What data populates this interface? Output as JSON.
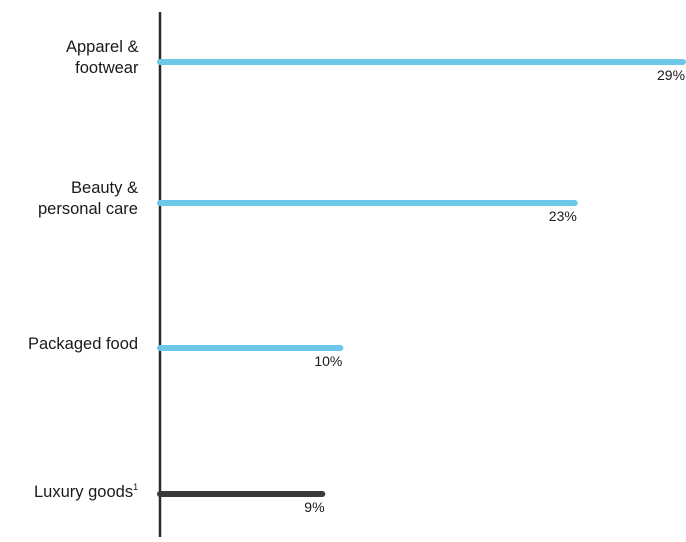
{
  "chart_data": {
    "type": "bar",
    "orientation": "horizontal",
    "categories": [
      {
        "line1": "Apparel &",
        "line2": "footwear",
        "sup": ""
      },
      {
        "line1": "Beauty &",
        "line2": "personal care",
        "sup": ""
      },
      {
        "line1": "Packaged food",
        "line2": "",
        "sup": ""
      },
      {
        "line1": "Luxury goods",
        "line2": "",
        "sup": "1"
      }
    ],
    "values": [
      29,
      23,
      10,
      9
    ],
    "value_labels": [
      "29%",
      "23%",
      "10%",
      "9%"
    ],
    "bar_colors": [
      "#6ec6e8",
      "#6ec6e8",
      "#6ec6e8",
      "#3a3a3a"
    ],
    "axis_color": "#2b2b2b",
    "xlim": [
      0,
      29
    ],
    "grid": false,
    "title": "",
    "xlabel": "",
    "ylabel": ""
  }
}
